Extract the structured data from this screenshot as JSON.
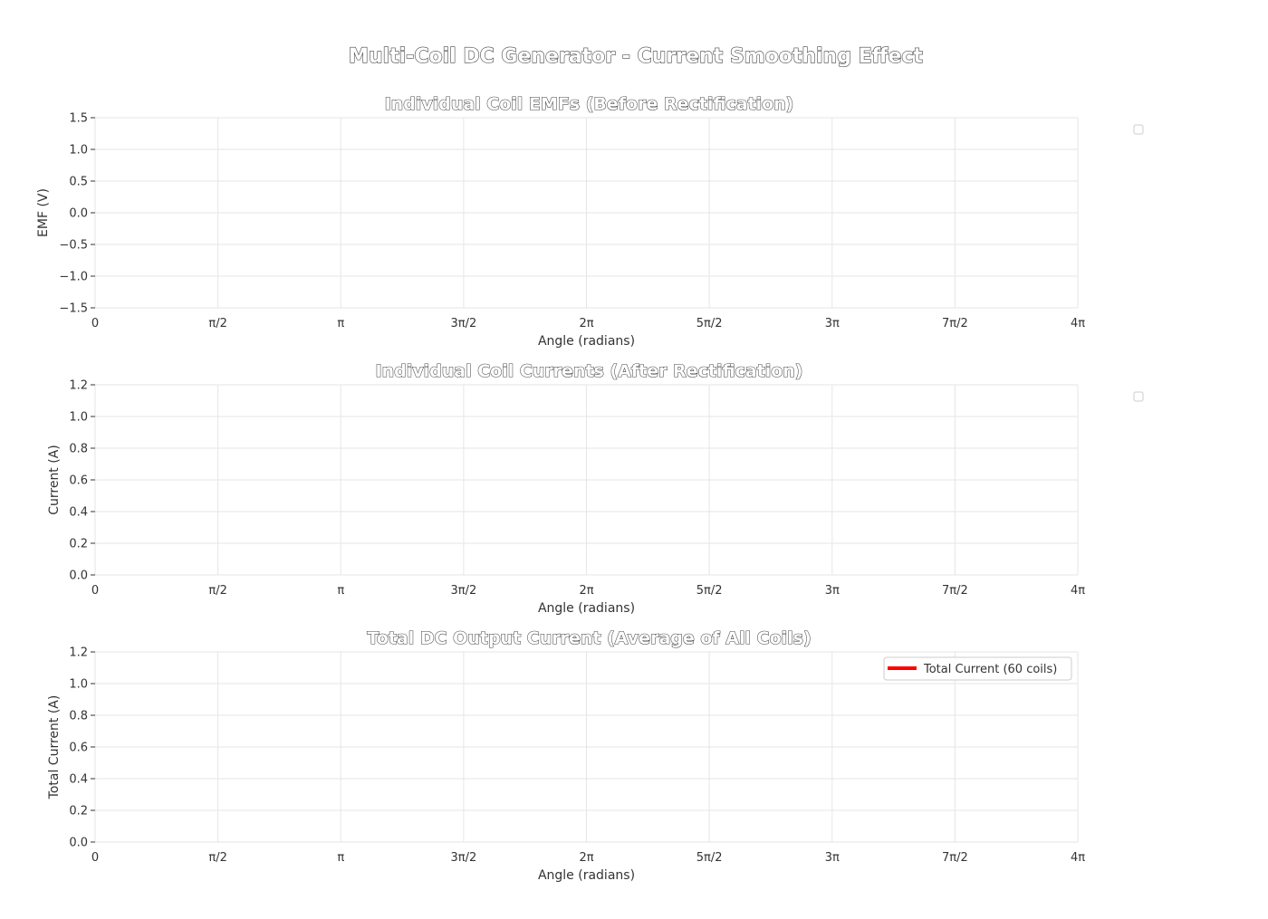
{
  "figure": {
    "suptitle": "Multi-Coil DC Generator - Current Smoothing Effect"
  },
  "colors": {
    "background": "#ffffff",
    "grid": "#e6e6e6",
    "axis_text": "#333333",
    "title_text": "#ffffff",
    "title_outline": "#444444",
    "total_current_line": "#ff0000"
  },
  "chart_data": [
    {
      "type": "line",
      "title": "Individual Coil EMFs (Before Rectification)",
      "xlabel": "Angle (radians)",
      "ylabel": "EMF (V)",
      "xlim": [
        0,
        12.566
      ],
      "ylim": [
        -1.5,
        1.5
      ],
      "x_ticks": [
        0,
        1.5708,
        3.1416,
        4.7124,
        6.2832,
        7.854,
        9.4248,
        10.9956,
        12.5664
      ],
      "x_tick_labels": [
        "0",
        "π/2",
        "π",
        "3π/2",
        "2π",
        "5π/2",
        "3π",
        "7π/2",
        "4π"
      ],
      "y_ticks": [
        -1.5,
        -1.0,
        -0.5,
        0.0,
        0.5,
        1.0,
        1.5
      ],
      "y_tick_labels": [
        "−1.5",
        "−1.0",
        "−0.5",
        "0.0",
        "0.5",
        "1.0",
        "1.5"
      ],
      "grid": true,
      "legend": "outside-right (empty)",
      "series": []
    },
    {
      "type": "line",
      "title": "Individual Coil Currents (After Rectification)",
      "xlabel": "Angle (radians)",
      "ylabel": "Current (A)",
      "xlim": [
        0,
        12.566
      ],
      "ylim": [
        0,
        1.2
      ],
      "x_ticks": [
        0,
        1.5708,
        3.1416,
        4.7124,
        6.2832,
        7.854,
        9.4248,
        10.9956,
        12.5664
      ],
      "x_tick_labels": [
        "0",
        "π/2",
        "π",
        "3π/2",
        "2π",
        "5π/2",
        "3π",
        "7π/2",
        "4π"
      ],
      "y_ticks": [
        0.0,
        0.2,
        0.4,
        0.6,
        0.8,
        1.0,
        1.2
      ],
      "y_tick_labels": [
        "0.0",
        "0.2",
        "0.4",
        "0.6",
        "0.8",
        "1.0",
        "1.2"
      ],
      "grid": true,
      "legend": "outside-right (empty)",
      "series": []
    },
    {
      "type": "line",
      "title": "Total DC Output Current (Average of All Coils)",
      "xlabel": "Angle (radians)",
      "ylabel": "Total Current (A)",
      "xlim": [
        0,
        12.566
      ],
      "ylim": [
        0,
        1.2
      ],
      "x_ticks": [
        0,
        1.5708,
        3.1416,
        4.7124,
        6.2832,
        7.854,
        9.4248,
        10.9956,
        12.5664
      ],
      "x_tick_labels": [
        "0",
        "π/2",
        "π",
        "3π/2",
        "2π",
        "5π/2",
        "3π",
        "7π/2",
        "4π"
      ],
      "y_ticks": [
        0.0,
        0.2,
        0.4,
        0.6,
        0.8,
        1.0,
        1.2
      ],
      "y_tick_labels": [
        "0.0",
        "0.2",
        "0.4",
        "0.6",
        "0.8",
        "1.0",
        "1.2"
      ],
      "grid": true,
      "legend": "top-right",
      "series": [
        {
          "name": "Total Current (60 coils)",
          "color": "#ff0000",
          "x": [],
          "y": []
        }
      ]
    }
  ]
}
